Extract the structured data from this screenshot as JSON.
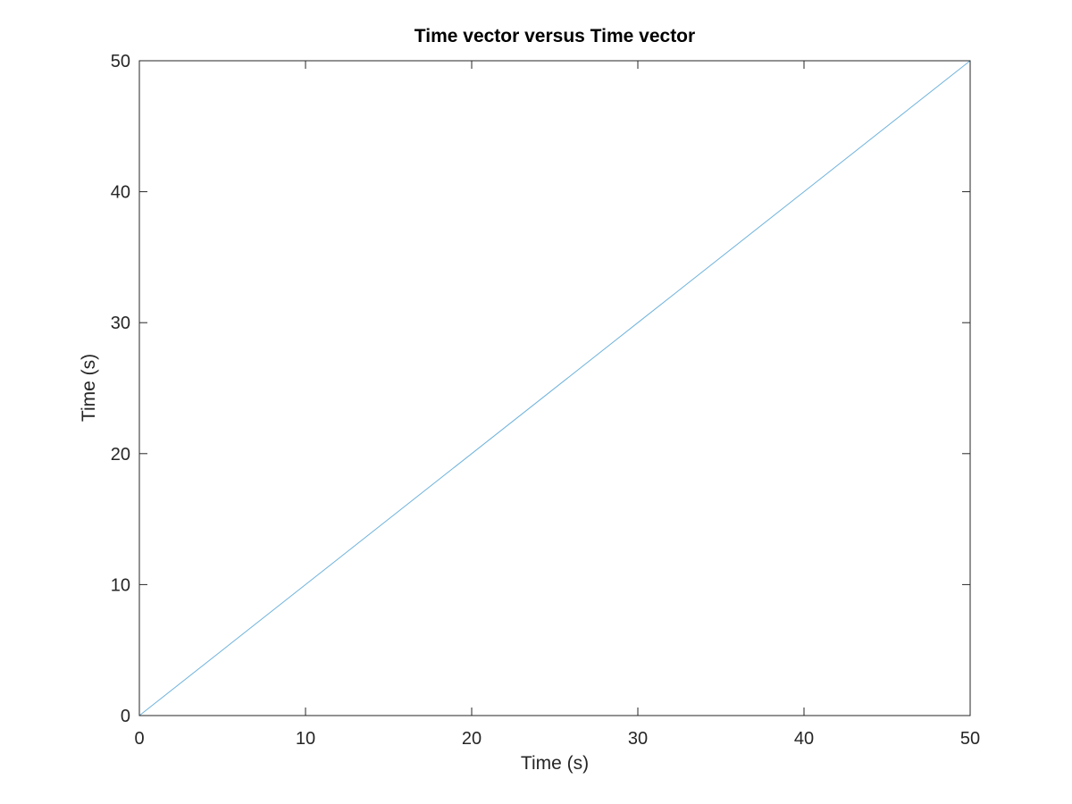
{
  "chart_data": {
    "type": "line",
    "title": "Time vector versus Time vector",
    "xlabel": "Time (s)",
    "ylabel": "Time (s)",
    "xlim": [
      0,
      50
    ],
    "ylim": [
      0,
      50
    ],
    "xticks": [
      0,
      10,
      20,
      30,
      40,
      50
    ],
    "yticks": [
      0,
      10,
      20,
      30,
      40,
      50
    ],
    "grid": false,
    "series": [
      {
        "color": "#6fb3dc",
        "x": [
          0,
          10,
          20,
          30,
          40,
          50
        ],
        "y": [
          0,
          10,
          20,
          30,
          40,
          50
        ]
      }
    ]
  }
}
